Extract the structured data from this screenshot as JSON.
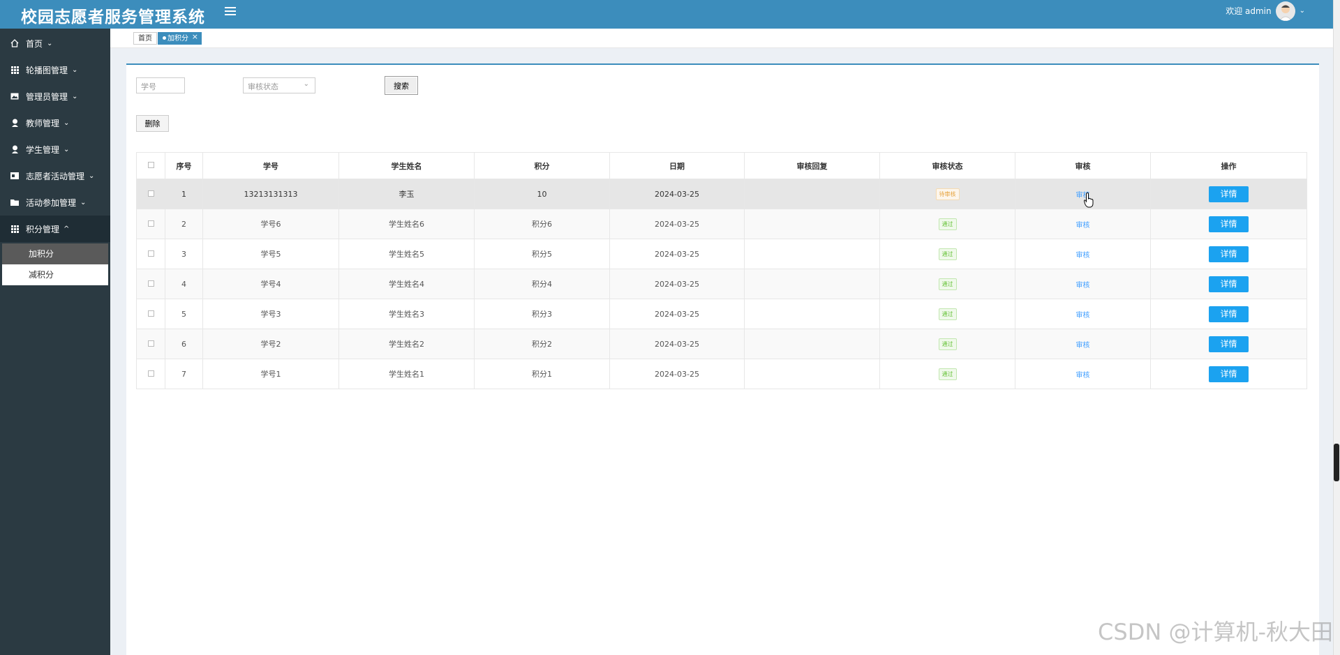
{
  "header": {
    "title": "校园志愿者服务管理系统",
    "user_greeting": "欢迎 admin"
  },
  "sidebar": {
    "items": [
      {
        "label": "首页",
        "icon": "home-icon",
        "arrow": "⌄"
      },
      {
        "label": "轮播图管理",
        "icon": "grid-icon",
        "arrow": "⌄"
      },
      {
        "label": "管理员管理",
        "icon": "image-icon",
        "arrow": "⌄"
      },
      {
        "label": "教师管理",
        "icon": "user-icon",
        "arrow": "⌄"
      },
      {
        "label": "学生管理",
        "icon": "user-icon",
        "arrow": "⌄"
      },
      {
        "label": "志愿者活动管理",
        "icon": "card-icon",
        "arrow": "⌄"
      },
      {
        "label": "活动参加管理",
        "icon": "folder-icon",
        "arrow": "⌄"
      },
      {
        "label": "积分管理",
        "icon": "grid-icon",
        "arrow": "^"
      }
    ],
    "submenu": [
      {
        "label": "加积分"
      },
      {
        "label": "减积分"
      }
    ]
  },
  "tabs": {
    "home": "首页",
    "active": "加积分",
    "close": "×"
  },
  "toolbar": {
    "student_id_placeholder": "学号",
    "status_placeholder": "审核状态",
    "search_label": "搜索",
    "delete_label": "删除"
  },
  "table": {
    "columns": [
      "序号",
      "学号",
      "学生姓名",
      "积分",
      "日期",
      "审核回复",
      "审核状态",
      "审核",
      "操作"
    ],
    "rows": [
      {
        "index": "1",
        "student_id": "13213131313",
        "name": "李玉",
        "points": "10",
        "date": "2024-03-25",
        "reply": "",
        "status": "待审核",
        "audit": "审核",
        "action": "详情"
      },
      {
        "index": "2",
        "student_id": "学号6",
        "name": "学生姓名6",
        "points": "积分6",
        "date": "2024-03-25",
        "reply": "",
        "status": "通过",
        "audit": "审核",
        "action": "详情"
      },
      {
        "index": "3",
        "student_id": "学号5",
        "name": "学生姓名5",
        "points": "积分5",
        "date": "2024-03-25",
        "reply": "",
        "status": "通过",
        "audit": "审核",
        "action": "详情"
      },
      {
        "index": "4",
        "student_id": "学号4",
        "name": "学生姓名4",
        "points": "积分4",
        "date": "2024-03-25",
        "reply": "",
        "status": "通过",
        "audit": "审核",
        "action": "详情"
      },
      {
        "index": "5",
        "student_id": "学号3",
        "name": "学生姓名3",
        "points": "积分3",
        "date": "2024-03-25",
        "reply": "",
        "status": "通过",
        "audit": "审核",
        "action": "详情"
      },
      {
        "index": "6",
        "student_id": "学号2",
        "name": "学生姓名2",
        "points": "积分2",
        "date": "2024-03-25",
        "reply": "",
        "status": "通过",
        "audit": "审核",
        "action": "详情"
      },
      {
        "index": "7",
        "student_id": "学号1",
        "name": "学生姓名1",
        "points": "积分1",
        "date": "2024-03-25",
        "reply": "",
        "status": "通过",
        "audit": "审核",
        "action": "详情"
      }
    ]
  },
  "watermark": "CSDN @计算机-秋大田",
  "colors": {
    "header": "#3c8dbc",
    "sidebar": "#2b3a42",
    "detail_button": "#1ba2f0",
    "link": "#409eff",
    "pending": "#e6a23c",
    "pass": "#67c23a"
  }
}
